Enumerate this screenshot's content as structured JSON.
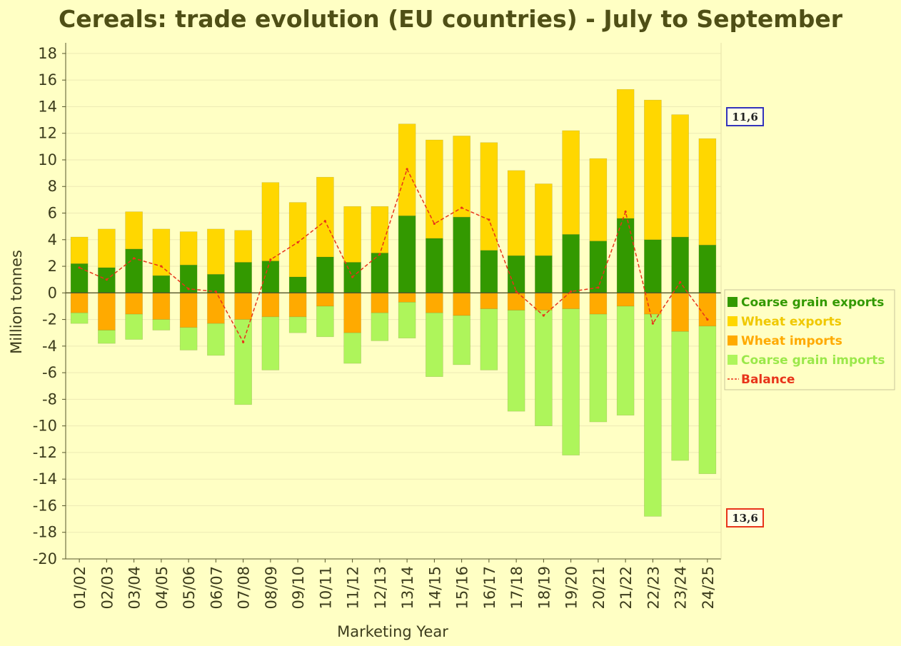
{
  "chart_data": {
    "type": "bar",
    "title": "Cereals: trade evolution (EU countries) - July to September",
    "xlabel": "Marketing Year",
    "ylabel": "Million tonnes",
    "ylim": [
      -20,
      18.8
    ],
    "yticks": [
      18,
      16,
      14,
      12,
      10,
      8,
      6,
      4,
      2,
      0,
      -2,
      -4,
      -6,
      -8,
      -10,
      -12,
      -14,
      -16,
      -18,
      -20
    ],
    "stacked": true,
    "grid": true,
    "legend_position": "right",
    "categories": [
      "01/02",
      "02/03",
      "03/04",
      "04/05",
      "05/06",
      "06/07",
      "07/08",
      "08/09",
      "09/10",
      "10/11",
      "11/12",
      "12/13",
      "13/14",
      "14/15",
      "15/16",
      "16/17",
      "17/18",
      "18/19",
      "19/20",
      "20/21",
      "21/22",
      "22/23",
      "23/24",
      "24/25"
    ],
    "series": [
      {
        "name": "Coarse grain exports",
        "type": "bar",
        "color": "#339900",
        "values": [
          2.2,
          1.9,
          3.3,
          1.3,
          2.1,
          1.4,
          2.3,
          2.4,
          1.2,
          2.7,
          2.3,
          3.0,
          5.8,
          4.1,
          5.7,
          3.2,
          2.8,
          2.8,
          4.4,
          3.9,
          5.6,
          4.0,
          4.2,
          3.6
        ]
      },
      {
        "name": "Wheat exports",
        "type": "bar",
        "color": "#FFD700",
        "values": [
          2.0,
          2.9,
          2.8,
          3.5,
          2.5,
          3.4,
          2.4,
          5.9,
          5.6,
          6.0,
          4.2,
          3.5,
          6.9,
          7.4,
          6.1,
          8.1,
          6.4,
          5.4,
          7.8,
          6.2,
          9.7,
          10.5,
          9.2,
          8.0
        ]
      },
      {
        "name": "Wheat imports",
        "type": "bar",
        "color": "#FFAA00",
        "values": [
          -1.5,
          -2.8,
          -1.6,
          -2.0,
          -2.6,
          -2.3,
          -2.0,
          -1.8,
          -1.8,
          -1.0,
          -3.0,
          -1.5,
          -0.7,
          -1.5,
          -1.7,
          -1.2,
          -1.3,
          -1.3,
          -1.2,
          -1.6,
          -1.0,
          -1.6,
          -2.9,
          -2.5
        ]
      },
      {
        "name": "Coarse grain imports",
        "type": "bar",
        "color": "#AEF55B",
        "values": [
          -0.8,
          -1.0,
          -1.9,
          -0.8,
          -1.7,
          -2.4,
          -6.4,
          -4.0,
          -1.2,
          -2.3,
          -2.3,
          -2.1,
          -2.7,
          -4.8,
          -3.7,
          -4.6,
          -7.6,
          -8.7,
          -11.0,
          -8.1,
          -8.2,
          -15.2,
          -9.7,
          -11.1
        ]
      },
      {
        "name": "Balance",
        "type": "line",
        "color": "#E8341A",
        "values": [
          1.9,
          1.0,
          2.6,
          2.0,
          0.3,
          0.1,
          -3.7,
          2.5,
          3.8,
          5.4,
          1.2,
          2.9,
          9.3,
          5.2,
          6.4,
          5.5,
          0.1,
          -1.7,
          0.1,
          0.4,
          6.1,
          -2.3,
          0.8,
          -2.0
        ]
      }
    ],
    "annotations": [
      {
        "text": "11,6",
        "color": "#3333BB"
      },
      {
        "text": "13,6",
        "color": "#E8341A"
      }
    ]
  },
  "colors": {
    "background": "#FFFFC4",
    "plot_background": "#FFFFC4",
    "gridline": "#EDEAB5",
    "axis": "#55552B",
    "zero_line": "#55552B"
  }
}
